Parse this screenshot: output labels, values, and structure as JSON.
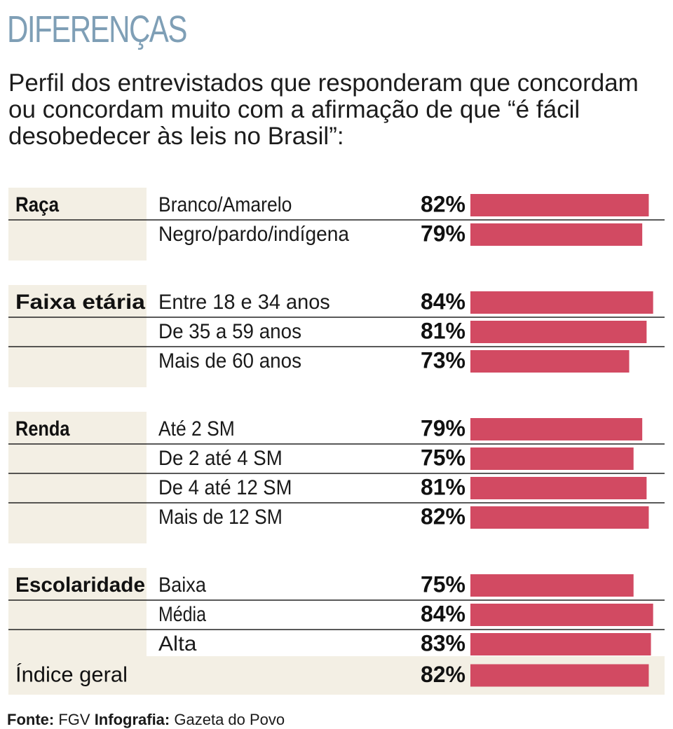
{
  "header": {
    "title": "DIFERENÇAS",
    "subtitle": "Perfil dos entrevistados que responderam que concordam ou concordam muito com a afirmação de que “é fácil desobedecer às leis no Brasil”:"
  },
  "footer": {
    "source_label": "Fonte:",
    "source_value": "FGV",
    "infographic_label": "Infografia:",
    "infographic_value": "Gazeta do Povo"
  },
  "colors": {
    "bar": "#d24a62",
    "group_bg": "#f3efe4",
    "title": "#7f9fb6",
    "rule": "#222222"
  },
  "chart_data": {
    "type": "bar",
    "orientation": "horizontal",
    "value_suffix": "%",
    "xlim": [
      0,
      100
    ],
    "groups": [
      {
        "name": "Raça",
        "items": [
          {
            "label": "Branco/Amarelo",
            "value": 82
          },
          {
            "label": "Negro/pardo/indígena",
            "value": 79
          }
        ]
      },
      {
        "name": "Faixa etária",
        "items": [
          {
            "label": "Entre 18 e 34 anos",
            "value": 84
          },
          {
            "label": "De 35 a 59 anos",
            "value": 81
          },
          {
            "label": "Mais de 60 anos",
            "value": 73
          }
        ]
      },
      {
        "name": "Renda",
        "items": [
          {
            "label": "Até 2 SM",
            "value": 79
          },
          {
            "label": "De 2 até 4 SM",
            "value": 75
          },
          {
            "label": "De 4 até 12 SM",
            "value": 81
          },
          {
            "label": "Mais de 12 SM",
            "value": 82
          }
        ]
      },
      {
        "name": "Escolaridade",
        "items": [
          {
            "label": "Baixa",
            "value": 75
          },
          {
            "label": "Média",
            "value": 84
          },
          {
            "label": "Alta",
            "value": 83
          }
        ]
      }
    ],
    "total": {
      "label": "Índice geral",
      "value": 82
    }
  }
}
